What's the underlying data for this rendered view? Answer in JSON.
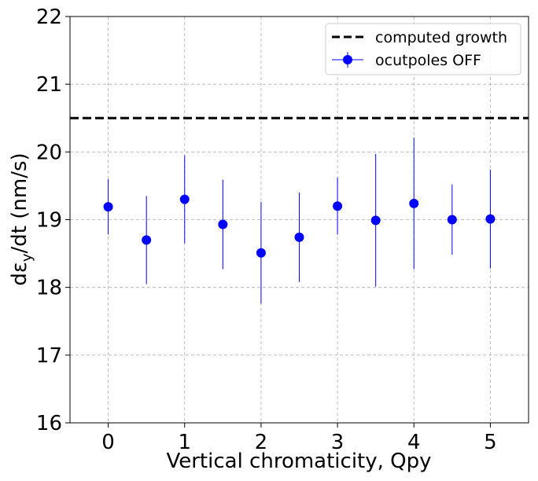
{
  "chart_data": {
    "type": "scatter",
    "title": "",
    "xlabel": "Vertical chromaticity, Qpy",
    "ylabel_main": "dε",
    "ylabel_sub": "y",
    "ylabel_tail": "/dt (nm/s)",
    "xlim": [
      -0.5,
      5.5
    ],
    "ylim": [
      16,
      22
    ],
    "xticks": [
      0,
      1,
      2,
      3,
      4,
      5
    ],
    "xtick_labels": [
      "0",
      "1",
      "2",
      "3",
      "4",
      "5"
    ],
    "yticks": [
      16,
      17,
      18,
      19,
      20,
      21,
      22
    ],
    "ytick_labels": [
      "16",
      "17",
      "18",
      "19",
      "20",
      "21",
      "22"
    ],
    "grid": true,
    "legend_position": "top-right",
    "series": [
      {
        "name": "ocutpoles OFF",
        "color": "#0000ff",
        "x": [
          0,
          0.5,
          1,
          1.5,
          2,
          2.5,
          3,
          3.5,
          4,
          4.5,
          5
        ],
        "y": [
          19.19,
          18.7,
          19.3,
          18.93,
          18.51,
          18.74,
          19.2,
          18.99,
          19.24,
          19.0,
          19.01
        ],
        "err": [
          0.41,
          0.65,
          0.65,
          0.66,
          0.75,
          0.66,
          0.42,
          0.98,
          0.97,
          0.52,
          0.73
        ]
      }
    ],
    "reference_line": {
      "name": "computed growth",
      "y": 20.5,
      "color": "#000000",
      "style": "dashed"
    }
  }
}
